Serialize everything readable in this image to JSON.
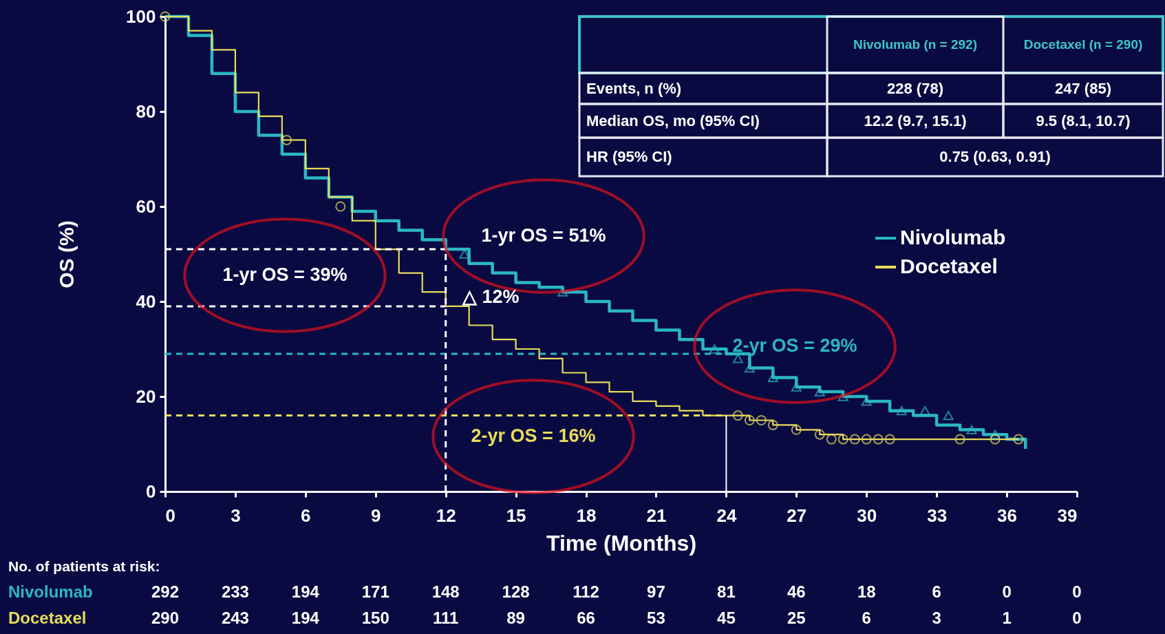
{
  "chart_data": {
    "type": "step",
    "xlabel": "Time (Months)",
    "ylabel": "OS (%)",
    "xlim": [
      0,
      39
    ],
    "xticks": [
      0,
      3,
      6,
      9,
      12,
      15,
      18,
      21,
      24,
      27,
      30,
      33,
      36,
      39
    ],
    "ylim": [
      0,
      100
    ],
    "yticks": [
      0,
      20,
      40,
      60,
      80,
      100
    ],
    "grid": false,
    "legend": "right",
    "series": [
      {
        "name": "Nivolumab",
        "color": "#2ab7c6",
        "x": [
          0,
          1,
          2,
          3,
          4,
          5,
          6,
          7,
          8,
          9,
          10,
          11,
          12,
          13,
          14,
          15,
          16,
          17,
          18,
          19,
          20,
          21,
          22,
          23,
          24,
          25,
          26,
          27,
          28,
          29,
          30,
          31,
          32,
          33,
          34,
          35,
          36,
          36.8
        ],
        "values": [
          100,
          96,
          88,
          80,
          75,
          71,
          66,
          62,
          59,
          57,
          55,
          53,
          51,
          48,
          46,
          44,
          43,
          42,
          40,
          38,
          36,
          34,
          32,
          30,
          29,
          26,
          24,
          22,
          21,
          20,
          19,
          17,
          16,
          14,
          13,
          12,
          11,
          9
        ]
      },
      {
        "name": "Docetaxel",
        "color": "#e8dc5a",
        "x": [
          0,
          1,
          2,
          3,
          4,
          5,
          6,
          7,
          8,
          9,
          10,
          11,
          12,
          13,
          14,
          15,
          16,
          17,
          18,
          19,
          20,
          21,
          22,
          23,
          24,
          25,
          26,
          27,
          28,
          29,
          30,
          36.5
        ],
        "values": [
          100,
          97,
          93,
          84,
          79,
          74,
          68,
          62,
          57,
          51,
          46,
          42,
          39,
          35,
          32,
          30,
          28,
          25,
          23,
          21,
          19,
          18,
          17,
          16,
          16,
          15,
          14,
          13,
          12,
          11,
          11,
          11
        ]
      },
      {
        "color": "#2ab7c6",
        "type": "scatter",
        "marker": "triangle",
        "x": [
          12.8,
          17,
          23.5,
          24.5,
          25,
          26,
          27,
          28,
          29,
          30,
          31.5,
          32.5,
          33.5,
          34.5,
          35.5
        ],
        "values": [
          50,
          42,
          30,
          28,
          26,
          24,
          22,
          21,
          20,
          19,
          17,
          17,
          16,
          13,
          12
        ]
      },
      {
        "color": "#e8dc5a",
        "type": "scatter",
        "marker": "circle",
        "x": [
          0,
          5.2,
          7.5,
          24.5,
          25,
          25.5,
          26,
          27,
          28,
          28.5,
          29,
          29.5,
          30,
          30.5,
          31,
          34,
          35.5,
          36.5
        ],
        "values": [
          100,
          74,
          60,
          16,
          15,
          15,
          14,
          13,
          12,
          11,
          11,
          11,
          11,
          11,
          11,
          11,
          11,
          11
        ]
      },
      {
        "color": "#ffffff",
        "type": "line",
        "line_style": "dashed",
        "x": [
          0,
          12
        ],
        "values": [
          51,
          51
        ]
      },
      {
        "color": "#ffffff",
        "type": "line",
        "line_style": "dashed",
        "x": [
          0,
          12
        ],
        "values": [
          39,
          39
        ]
      },
      {
        "color": "#2ab7c6",
        "type": "line",
        "line_style": "dashed",
        "x": [
          0,
          24
        ],
        "values": [
          29,
          29
        ]
      },
      {
        "color": "#e8dc5a",
        "type": "line",
        "line_style": "dashed",
        "x": [
          0,
          24
        ],
        "values": [
          16,
          16
        ]
      },
      {
        "color": "#ffffff",
        "type": "line",
        "line_style": "dashed",
        "x": [
          12,
          12
        ],
        "values": [
          0,
          51
        ]
      },
      {
        "color": "#ffffff",
        "type": "line",
        "line_style": "solid",
        "x": [
          24,
          24
        ],
        "values": [
          0,
          16
        ]
      }
    ],
    "annotations": [
      "1-yr OS = 39%",
      "1-yr OS = 51%",
      "2-yr OS = 29%",
      "2-yr OS = 16%",
      "△ 12%",
      "Nivolumab (n = 292)",
      "Docetaxel (n = 290)",
      "Events, n (%)",
      "228 (78)",
      "247 (85)",
      "Median OS, mo (95% CI)",
      "12.2 (9.7, 15.1)",
      "9.5 (8.1, 10.7)",
      "HR (95% CI)",
      "0.75 (0.63, 0.91)",
      "No. of patients at risk:",
      "Nivolumab 292 233 194 171 148 128 112 97 81 46 18 6 0 0",
      "Docetaxel 290 243 194 150 111 89 66 53 45 25 6 3 1 0"
    ]
  }
}
